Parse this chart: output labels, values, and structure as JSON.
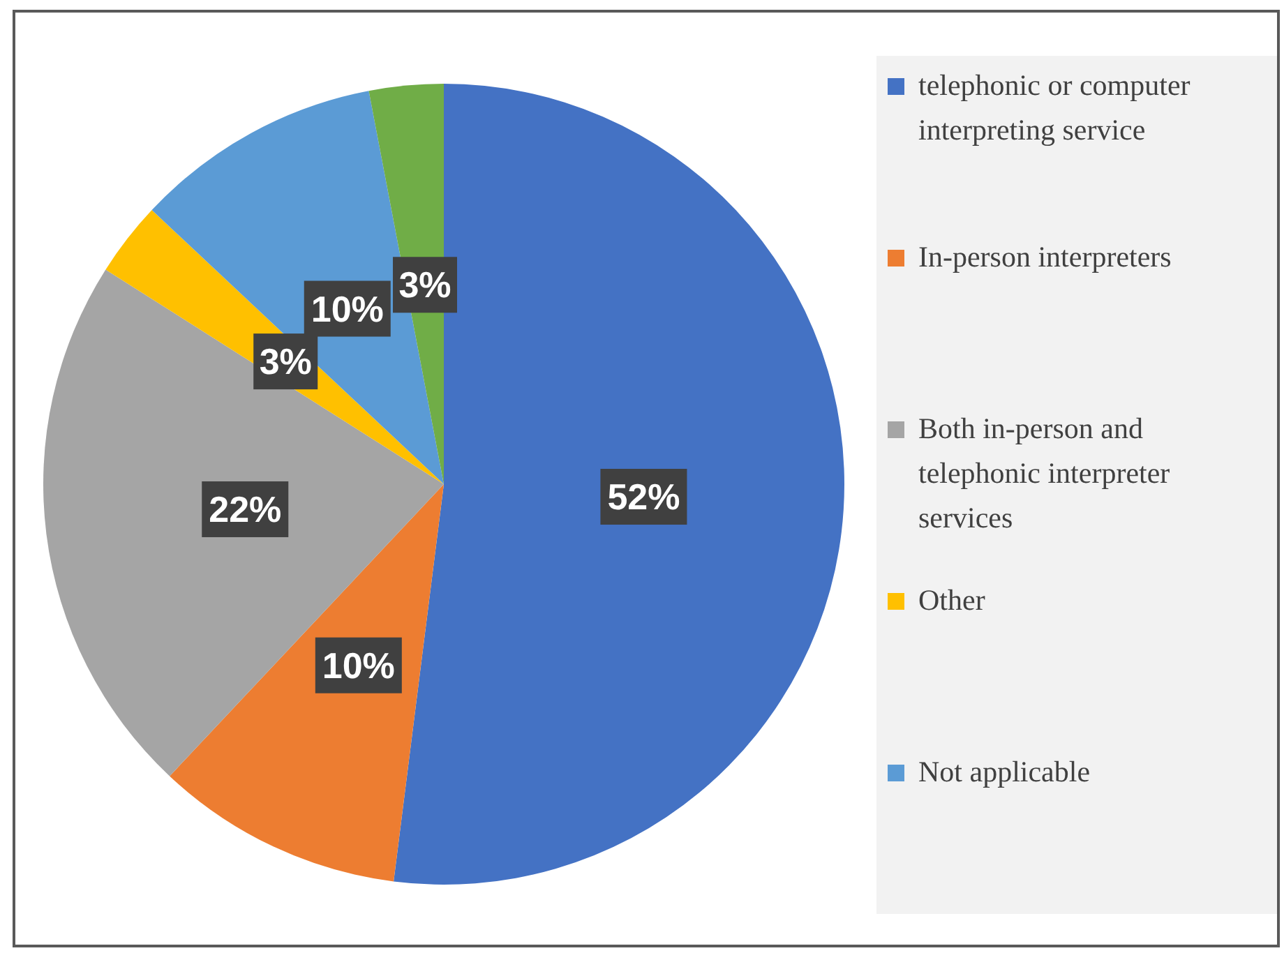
{
  "chart_data": {
    "type": "pie",
    "categories": [
      "telephonic or computer interpreting service",
      "In-person interpreters",
      "Both in-person and telephonic interpreter services",
      "Other",
      "Not applicable",
      null
    ],
    "values": [
      52,
      10,
      22,
      3,
      10,
      3
    ],
    "colors": [
      "#4472c4",
      "#ed7d31",
      "#a5a5a5",
      "#ffc000",
      "#5b9bd5",
      "#70ad47"
    ],
    "value_labels": [
      "52%",
      "10%",
      "22%",
      "3%",
      "10%",
      "3%"
    ],
    "legend": "right"
  }
}
